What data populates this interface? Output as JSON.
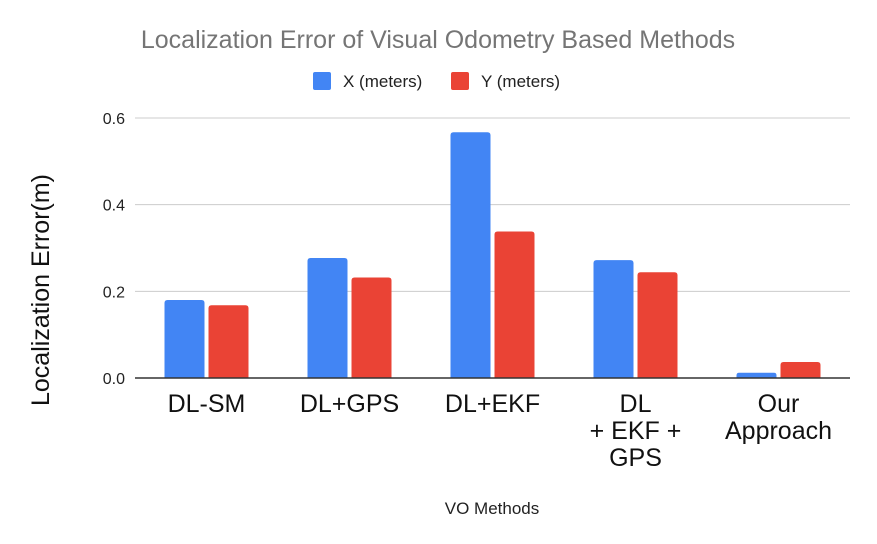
{
  "chart_data": {
    "type": "bar",
    "title": "Localization Error of Visual Odometry Based Methods",
    "xlabel": "VO Methods",
    "ylabel": "Localization Error(m)",
    "categories": [
      [
        "DL-SM"
      ],
      [
        "DL+GPS"
      ],
      [
        "DL+EKF"
      ],
      [
        "DL",
        "+ EKF +",
        "GPS"
      ],
      [
        "Our",
        "Approach"
      ]
    ],
    "series": [
      {
        "name": "X (meters)",
        "color": "#4285f4",
        "values": [
          0.18,
          0.277,
          0.567,
          0.272,
          0.012
        ]
      },
      {
        "name": "Y (meters)",
        "color": "#ea4335",
        "values": [
          0.168,
          0.232,
          0.338,
          0.244,
          0.037
        ]
      }
    ],
    "ylim": [
      0,
      0.6
    ],
    "yticks": [
      "0.0",
      "0.2",
      "0.4",
      "0.6"
    ],
    "ytick_values": [
      0,
      0.2,
      0.4,
      0.6
    ],
    "grid": true,
    "legend_position": "top-center"
  }
}
